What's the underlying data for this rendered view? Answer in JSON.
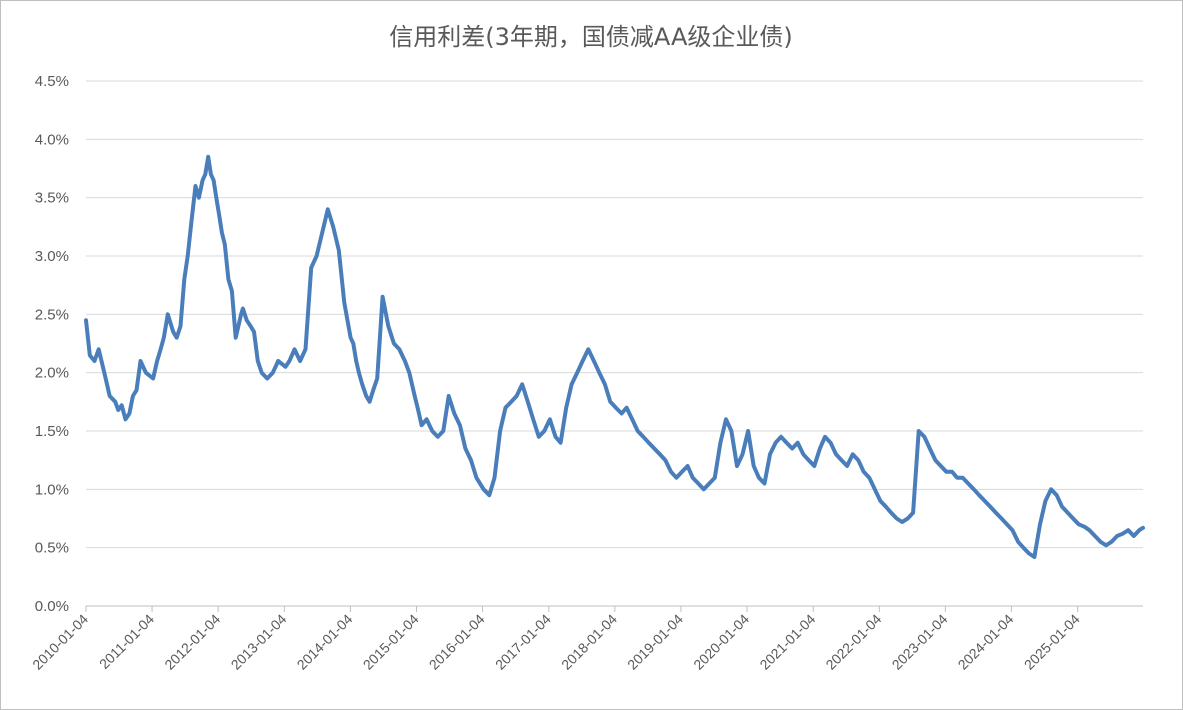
{
  "chart_data": {
    "type": "line",
    "title": "信用利差(3年期，国债减AA级企业债)",
    "xlabel": "",
    "ylabel": "",
    "ylim": [
      0,
      4.5
    ],
    "yticks": [
      "0.0%",
      "0.5%",
      "1.0%",
      "1.5%",
      "2.0%",
      "2.5%",
      "3.0%",
      "3.5%",
      "4.0%",
      "4.5%"
    ],
    "xticks": [
      "2010-01-04",
      "2011-01-04",
      "2012-01-04",
      "2013-01-04",
      "2014-01-04",
      "2015-01-04",
      "2016-01-04",
      "2017-01-04",
      "2018-01-04",
      "2019-01-04",
      "2020-01-04",
      "2021-01-04",
      "2022-01-04",
      "2023-01-04",
      "2024-01-04",
      "2025-01-04"
    ],
    "grid": true,
    "legend": "none",
    "colors": {
      "series": "#4a7ebb"
    },
    "series": [
      {
        "x": [
          "2010-01-04",
          "2010-01-25",
          "2010-02-20",
          "2010-03-15",
          "2010-04-15",
          "2010-05-15",
          "2010-06-15",
          "2010-07-01",
          "2010-07-20",
          "2010-08-10",
          "2010-09-01",
          "2010-09-20",
          "2010-10-10",
          "2010-11-01",
          "2010-12-01",
          "2011-01-10",
          "2011-02-01",
          "2011-02-20",
          "2011-03-10",
          "2011-04-01",
          "2011-05-01",
          "2011-05-20",
          "2011-06-10",
          "2011-07-01",
          "2011-07-20",
          "2011-08-10",
          "2011-09-01",
          "2011-09-20",
          "2011-10-10",
          "2011-10-25",
          "2011-11-10",
          "2011-11-25",
          "2011-12-10",
          "2011-12-25",
          "2012-01-10",
          "2012-01-25",
          "2012-02-10",
          "2012-03-01",
          "2012-03-20",
          "2012-04-10",
          "2012-04-25",
          "2012-05-10",
          "2012-05-20",
          "2012-06-10",
          "2012-07-01",
          "2012-07-20",
          "2012-08-10",
          "2012-09-01",
          "2012-10-01",
          "2012-11-01",
          "2012-12-01",
          "2013-01-10",
          "2013-02-01",
          "2013-03-01",
          "2013-04-01",
          "2013-05-01",
          "2013-06-01",
          "2013-07-01",
          "2013-08-01",
          "2013-09-01",
          "2013-10-01",
          "2013-11-01",
          "2013-12-01",
          "2014-01-05",
          "2014-01-20",
          "2014-02-05",
          "2014-02-20",
          "2014-03-10",
          "2014-04-01",
          "2014-04-20",
          "2014-05-10",
          "2014-06-01",
          "2014-07-01",
          "2014-08-01",
          "2014-09-01",
          "2014-10-01",
          "2014-11-01",
          "2014-11-25",
          "2014-12-10",
          "2014-12-25",
          "2015-01-10",
          "2015-02-01",
          "2015-03-01",
          "2015-04-01",
          "2015-05-01",
          "2015-06-01",
          "2015-07-01",
          "2015-08-01",
          "2015-09-01",
          "2015-10-01",
          "2015-11-01",
          "2015-12-01",
          "2016-01-10",
          "2016-02-10",
          "2016-03-10",
          "2016-04-10",
          "2016-05-10",
          "2016-06-10",
          "2016-07-10",
          "2016-08-10",
          "2016-09-10",
          "2016-10-10",
          "2016-11-10",
          "2016-12-10",
          "2017-01-10",
          "2017-02-10",
          "2017-03-10",
          "2017-04-10",
          "2017-05-10",
          "2017-06-10",
          "2017-07-10",
          "2017-08-10",
          "2017-09-10",
          "2017-10-10",
          "2017-11-10",
          "2017-12-10",
          "2018-01-10",
          "2018-02-10",
          "2018-03-10",
          "2018-04-10",
          "2018-05-10",
          "2018-06-10",
          "2018-07-10",
          "2018-08-10",
          "2018-09-10",
          "2018-10-10",
          "2018-11-10",
          "2018-12-10",
          "2019-01-10",
          "2019-02-10",
          "2019-03-10",
          "2019-04-10",
          "2019-05-10",
          "2019-06-10",
          "2019-07-10",
          "2019-08-10",
          "2019-09-10",
          "2019-10-10",
          "2019-11-10",
          "2019-12-10",
          "2020-01-10",
          "2020-02-10",
          "2020-03-10",
          "2020-04-10",
          "2020-05-10",
          "2020-06-10",
          "2020-07-10",
          "2020-08-10",
          "2020-09-10",
          "2020-10-10",
          "2020-11-10",
          "2020-12-10",
          "2021-01-10",
          "2021-02-10",
          "2021-03-10",
          "2021-04-10",
          "2021-05-10",
          "2021-06-10",
          "2021-07-10",
          "2021-08-10",
          "2021-09-10",
          "2021-10-10",
          "2021-11-10",
          "2021-12-10",
          "2022-01-10",
          "2022-02-10",
          "2022-03-10",
          "2022-04-10",
          "2022-05-10",
          "2022-06-10",
          "2022-07-10",
          "2022-08-10",
          "2022-09-10",
          "2022-10-10",
          "2022-11-10",
          "2022-12-10",
          "2023-01-10",
          "2023-02-10",
          "2023-03-10",
          "2023-04-10",
          "2023-05-10",
          "2023-06-10",
          "2023-07-10",
          "2023-08-10",
          "2023-09-10",
          "2023-10-10",
          "2023-11-10",
          "2023-12-10",
          "2024-01-10",
          "2024-02-10",
          "2024-03-10",
          "2024-04-10",
          "2024-05-10",
          "2024-06-10",
          "2024-07-10",
          "2024-08-10",
          "2024-09-10",
          "2024-10-10",
          "2024-11-10",
          "2024-12-10",
          "2025-01-10",
          "2025-02-10",
          "2025-03-10",
          "2025-04-10",
          "2025-05-10",
          "2025-06-10",
          "2025-07-10",
          "2025-08-10",
          "2025-09-10",
          "2025-10-10",
          "2025-11-10",
          "2025-12-10",
          "2025-12-31"
        ],
        "values": [
          2.45,
          2.15,
          2.1,
          2.2,
          2.0,
          1.8,
          1.75,
          1.68,
          1.72,
          1.6,
          1.65,
          1.8,
          1.85,
          2.1,
          2.0,
          1.95,
          2.1,
          2.2,
          2.3,
          2.5,
          2.35,
          2.3,
          2.4,
          2.8,
          3.0,
          3.3,
          3.6,
          3.5,
          3.65,
          3.7,
          3.85,
          3.7,
          3.65,
          3.5,
          3.35,
          3.2,
          3.1,
          2.8,
          2.7,
          2.3,
          2.4,
          2.5,
          2.55,
          2.45,
          2.4,
          2.35,
          2.1,
          2.0,
          1.95,
          2.0,
          2.1,
          2.05,
          2.1,
          2.2,
          2.1,
          2.2,
          2.9,
          3.0,
          3.2,
          3.4,
          3.25,
          3.05,
          2.6,
          2.3,
          2.25,
          2.1,
          2.0,
          1.9,
          1.8,
          1.75,
          1.85,
          1.95,
          2.65,
          2.4,
          2.25,
          2.2,
          2.1,
          2.0,
          1.9,
          1.8,
          1.7,
          1.55,
          1.6,
          1.5,
          1.45,
          1.5,
          1.8,
          1.65,
          1.55,
          1.35,
          1.25,
          1.1,
          1.0,
          0.95,
          1.1,
          1.5,
          1.7,
          1.75,
          1.8,
          1.9,
          1.75,
          1.6,
          1.45,
          1.5,
          1.6,
          1.45,
          1.4,
          1.7,
          1.9,
          2.0,
          2.1,
          2.2,
          2.1,
          2.0,
          1.9,
          1.75,
          1.7,
          1.65,
          1.7,
          1.6,
          1.5,
          1.45,
          1.4,
          1.35,
          1.3,
          1.25,
          1.15,
          1.1,
          1.15,
          1.2,
          1.1,
          1.05,
          1.0,
          1.05,
          1.1,
          1.4,
          1.6,
          1.5,
          1.2,
          1.3,
          1.5,
          1.2,
          1.1,
          1.05,
          1.3,
          1.4,
          1.45,
          1.4,
          1.35,
          1.4,
          1.3,
          1.25,
          1.2,
          1.35,
          1.45,
          1.4,
          1.3,
          1.25,
          1.2,
          1.3,
          1.25,
          1.15,
          1.1,
          1.0,
          0.9,
          0.85,
          0.8,
          0.75,
          0.72,
          0.75,
          0.8,
          1.5,
          1.45,
          1.35,
          1.25,
          1.2,
          1.15,
          1.15,
          1.1,
          1.1,
          1.05,
          1.0,
          0.95,
          0.9,
          0.85,
          0.8,
          0.75,
          0.7,
          0.65,
          0.55,
          0.5,
          0.45,
          0.42,
          0.7,
          0.9,
          1.0,
          0.95,
          0.85,
          0.8,
          0.75,
          0.7,
          0.68,
          0.65,
          0.6,
          0.55,
          0.52,
          0.55,
          0.6,
          0.62,
          0.65,
          0.6,
          0.65,
          0.67
        ]
      }
    ]
  }
}
